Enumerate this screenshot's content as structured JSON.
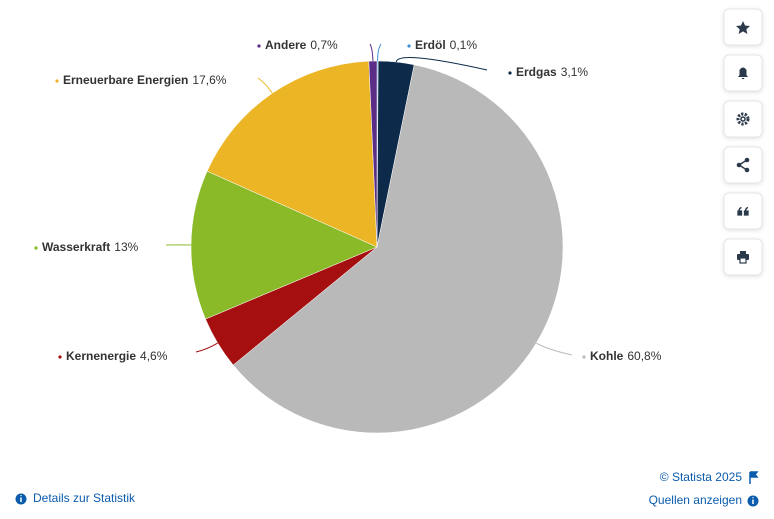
{
  "chart_data": {
    "type": "pie",
    "categories": [
      "Erdöl",
      "Erdgas",
      "Kohle",
      "Kernenergie",
      "Wasserkraft",
      "Erneuerbare Energien",
      "Andere"
    ],
    "values": [
      0.1,
      3.1,
      60.8,
      4.6,
      13,
      17.6,
      0.7
    ],
    "value_labels": [
      "0,1%",
      "3,1%",
      "60,8%",
      "4,6%",
      "13%",
      "17,6%",
      "0,7%"
    ],
    "colors": [
      "#3d8fd6",
      "#0d2a4a",
      "#b9b9b9",
      "#a50f0f",
      "#8aba28",
      "#ecb526",
      "#5b2d86"
    ]
  },
  "footer": {
    "copyright": "© Statista 2025",
    "details": "Details zur Statistik",
    "sources": "Quellen anzeigen"
  }
}
